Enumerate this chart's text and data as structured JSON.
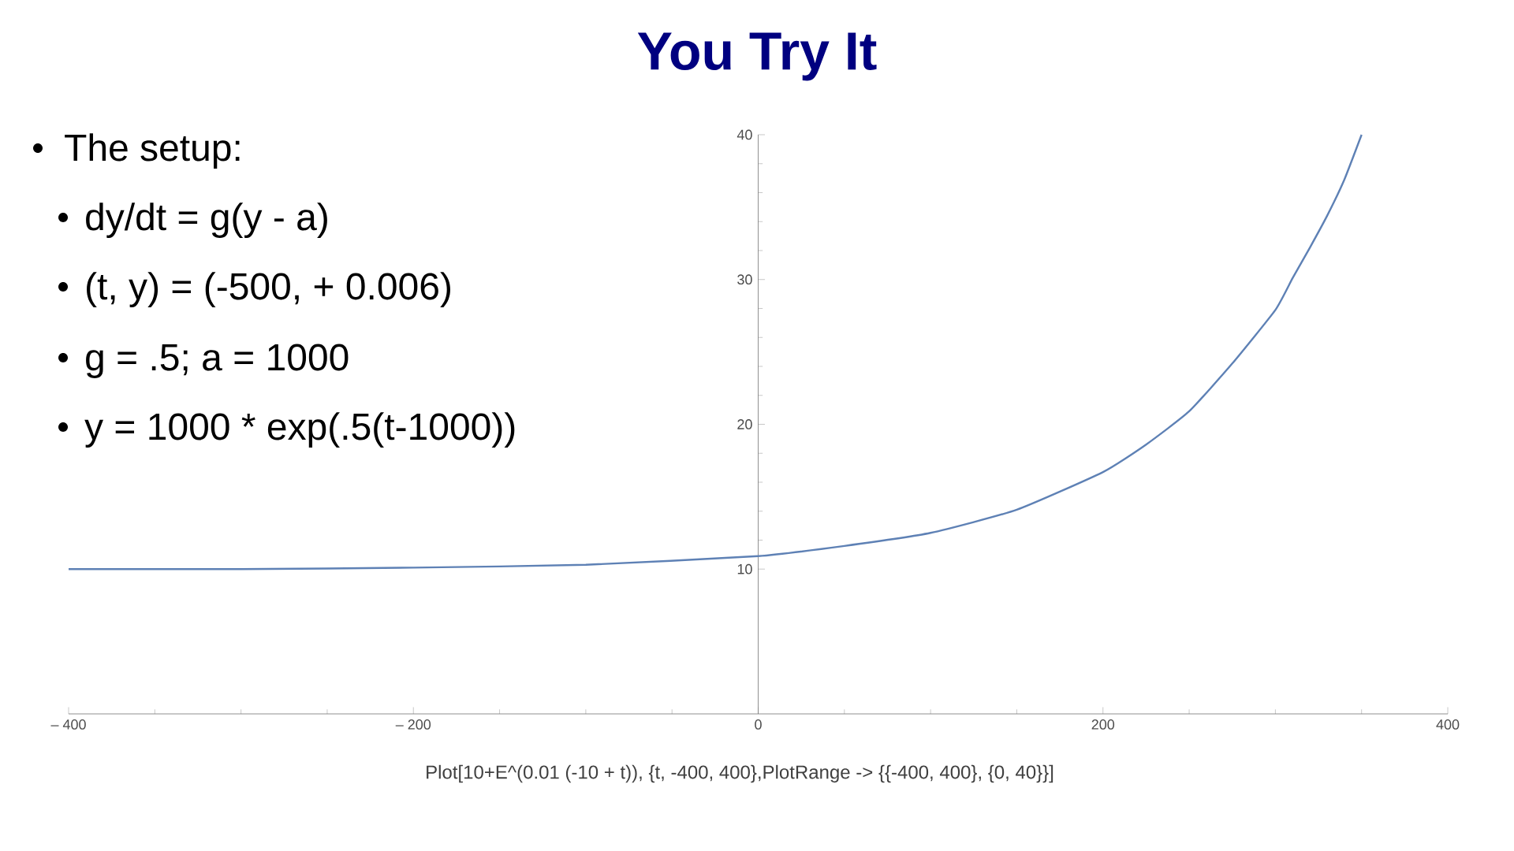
{
  "chart_data": {
    "type": "line",
    "title": "You Try It",
    "annotations": [
      "The setup:",
      "dy/dt = g(y - a)",
      "(t, y) = (-500, + 0.006)",
      "g = .5; a = 1000",
      "y = 1000 * exp(.5(t-1000))",
      "Plot[10+E^(0.01 (-10 + t)), {t, -400, 400},PlotRange -> {{-400, 400}, {0, 40}}]"
    ],
    "x": [
      -400,
      -300,
      -200,
      -100,
      0,
      50,
      100,
      150,
      200,
      225,
      250,
      275,
      300,
      310,
      320,
      330,
      340,
      350
    ],
    "values": [
      10.0,
      10.0,
      10.1,
      10.3,
      10.9,
      11.6,
      12.5,
      14.1,
      16.7,
      18.6,
      20.9,
      24.2,
      27.9,
      30.1,
      32.2,
      34.4,
      36.9,
      40.0
    ],
    "color": "#5e81b5",
    "xlim": [
      -400,
      400
    ],
    "ylim": [
      0,
      40
    ],
    "xticks": [
      {
        "value": -400,
        "label": "– 400"
      },
      {
        "value": -200,
        "label": "– 200"
      },
      0,
      200,
      400
    ],
    "yticks": [
      10,
      20,
      30,
      40
    ]
  }
}
